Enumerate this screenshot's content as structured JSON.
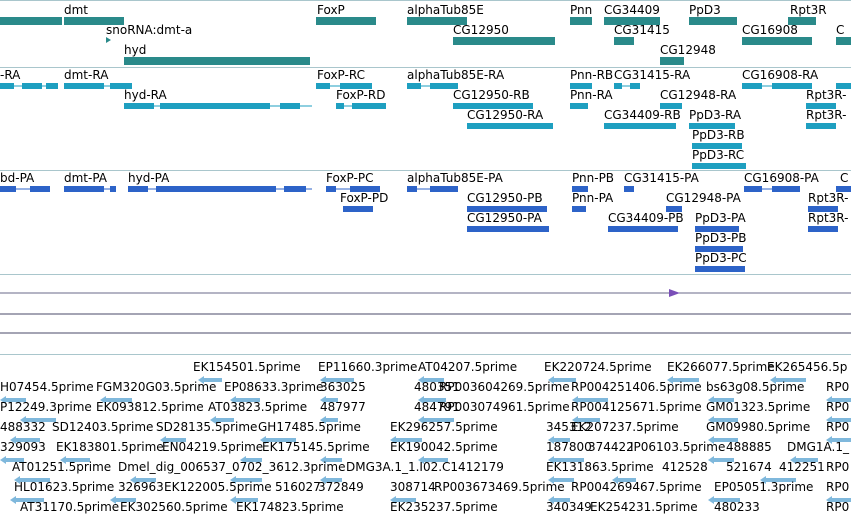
{
  "colors": {
    "gene": "#2a8a8a",
    "transcript": "#1e9fc0",
    "protein": "#2d63c8",
    "est": "#7fb8dc",
    "separator": "#a9c6cc",
    "line_dark": "#4a4a6a",
    "marker": "#7a4fb8"
  },
  "gene_track": {
    "labels": [
      "dmt",
      "snoRNA:dmt-a",
      "hyd",
      "FoxP",
      "alphaTub85E",
      "CG12950",
      "Pnn",
      "CG34409",
      "CG31415",
      "PpD3",
      "CG12948",
      "CG16908",
      "Rpt3R",
      "C"
    ]
  },
  "transcript_track": {
    "labels": [
      "-RA",
      "dmt-RA",
      "hyd-RA",
      "FoxP-RC",
      "FoxP-RD",
      "alphaTub85E-RA",
      "CG12950-RB",
      "CG12950-RA",
      "Pnn-RB",
      "CG31415-RA",
      "Pnn-RA",
      "CG12948-RA",
      "CG34409-RB",
      "PpD3-RA",
      "PpD3-RB",
      "PpD3-RC",
      "CG16908-RA",
      "Rpt3R-",
      "Rpt3R-"
    ]
  },
  "protein_track": {
    "labels": [
      "bd-PA",
      "dmt-PA",
      "hyd-PA",
      "FoxP-PC",
      "FoxP-PD",
      "alphaTub85E-PA",
      "CG12950-PB",
      "CG12950-PA",
      "Pnn-PB",
      "CG31415-PA",
      "Pnn-PA",
      "CG12948-PA",
      "CG34409-PB",
      "PpD3-PA",
      "PpD3-PB",
      "PpD3-PC",
      "CG16908-PA",
      "Rpt3R-",
      "Rpt3R-",
      "C"
    ]
  },
  "est_track": {
    "rows": [
      [
        "EK154501.5prime",
        "EP11660.3prime",
        "AT04207.5prime",
        "EK220724.5prime",
        "EK266077.5prime",
        "EK265456.5p"
      ],
      [
        "H07454.5prime",
        "FGM320G03.5prime",
        "EP08633.3prime",
        "363025",
        "480351",
        "RP003604269.5prime",
        "RP004251406.5prime",
        "bs63g08.5prime",
        "RP0"
      ],
      [
        "P12249.3prime",
        "EK093812.5prime",
        "AT03823.5prime",
        "487977",
        "484791",
        "RP003074961.5prime",
        "RP004125671.5prime",
        "GM01323.5prime",
        "RP0"
      ],
      [
        "488332",
        "SD12403.5prime",
        "SD28135.5prime",
        "GH17485.5prime",
        "EK296257.5prime",
        "345312",
        "EK207237.5prime",
        "GM09980.5prime",
        "RP0"
      ],
      [
        "329093",
        "EK183801.5prime",
        "EN04219.5prime",
        "EK175145.5prime",
        "EK190042.5prime",
        "187800",
        "374422",
        "IP06103.5prime",
        "488885",
        "DMG1A.1_"
      ],
      [
        "AT01251.5prime",
        "Dmel_dig_006537_0702_3612.3prime",
        "DMG3A.1_1.I02.C1412179",
        "EK131863.5prime",
        "412528",
        "521674",
        "412251",
        "RP0"
      ],
      [
        "HL01623.5prime",
        "326963",
        "EK122005.5prime",
        "516027",
        "372849",
        "308714",
        "RP003673469.5prime",
        "RP004269467.5prime",
        "EP05051.3prime",
        "RP0"
      ],
      [
        "AT31170.5prime",
        "EK302560.5prime",
        "EK174823.5prime",
        "EK235237.5prime",
        "340349",
        "EK254231.5prime",
        "480233",
        "RP0"
      ]
    ]
  }
}
